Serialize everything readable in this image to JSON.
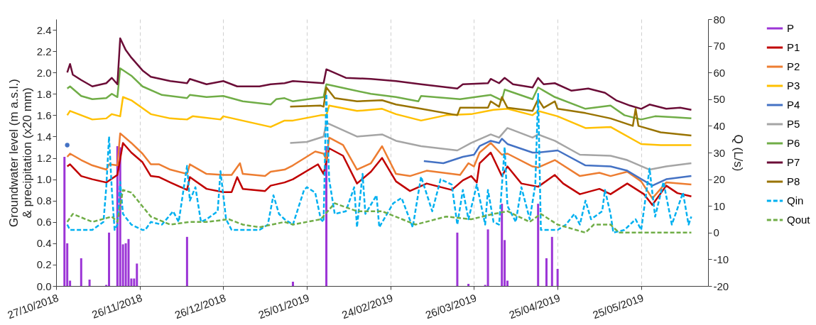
{
  "chart_data": {
    "type": "line",
    "ylabel": "Groundwater level (m a.s.l.)\n& precipitation (x20 mm)",
    "y2label": "Q (L/s)",
    "xlim": [
      "2018-10-27",
      "2019-06-18"
    ],
    "xticks": [
      {
        "value": "2018-10-27",
        "label": "27/10/2018"
      },
      {
        "value": "2018-11-26",
        "label": "26/11/2018"
      },
      {
        "value": "2018-12-26",
        "label": "26/12/2018"
      },
      {
        "value": "2019-01-25",
        "label": "25/01/2019"
      },
      {
        "value": "2019-02-24",
        "label": "24/02/2019"
      },
      {
        "value": "2019-03-26",
        "label": "26/03/2019"
      },
      {
        "value": "2019-04-25",
        "label": "25/04/2019"
      },
      {
        "value": "2019-05-25",
        "label": "25/05/2019"
      }
    ],
    "ylim": [
      0,
      2.5
    ],
    "yticks": [
      {
        "value": 0,
        "label": "0.0"
      },
      {
        "value": 0.2,
        "label": "0.2"
      },
      {
        "value": 0.4,
        "label": "0.4"
      },
      {
        "value": 0.6,
        "label": "0.6"
      },
      {
        "value": 0.8,
        "label": "0.8"
      },
      {
        "value": 1,
        "label": "1.0"
      },
      {
        "value": 1.2,
        "label": "1.2"
      },
      {
        "value": 1.4,
        "label": "1.4"
      },
      {
        "value": 1.6,
        "label": "1.6"
      },
      {
        "value": 1.8,
        "label": "1.8"
      },
      {
        "value": 2,
        "label": "2.0"
      },
      {
        "value": 2.2,
        "label": "2.2"
      },
      {
        "value": 2.4,
        "label": "2.4"
      }
    ],
    "y2lim": [
      -20,
      80
    ],
    "y2ticks": [
      -20,
      -10,
      0,
      10,
      20,
      30,
      40,
      50,
      60,
      70,
      80
    ],
    "grid": "x",
    "legend": "right",
    "series": [
      {
        "name": "P",
        "type": "bar",
        "color": "#9c35d6",
        "x": [
          "2018-10-30",
          "2018-10-31",
          "2018-11-01",
          "2018-11-05",
          "2018-11-08",
          "2018-11-14",
          "2018-11-15",
          "2018-11-18",
          "2018-11-19",
          "2018-11-20",
          "2018-11-21",
          "2018-11-22",
          "2018-11-23",
          "2018-11-24",
          "2018-11-25",
          "2018-12-13",
          "2019-01-20",
          "2019-02-01",
          "2019-03-20",
          "2019-03-24",
          "2019-03-30",
          "2019-03-31",
          "2019-04-05",
          "2019-04-06",
          "2019-04-07",
          "2019-04-18",
          "2019-04-21",
          "2019-04-23",
          "2019-04-25"
        ],
        "values": [
          1.21,
          0.4,
          0.05,
          0.26,
          0.06,
          0.01,
          0.5,
          1.31,
          1.3,
          0.39,
          0.4,
          0.44,
          0.07,
          0.07,
          0.21,
          0.46,
          0.04,
          1.31,
          0.5,
          0.02,
          0.01,
          0.53,
          0.77,
          0.43,
          0.05,
          0.77,
          0.26,
          0.46,
          0.16
        ]
      },
      {
        "name": "P1",
        "color": "#c00000",
        "x": [
          "2018-10-31",
          "2018-11-01",
          "2018-11-05",
          "2018-11-09",
          "2018-11-14",
          "2018-11-18",
          "2018-11-20",
          "2018-11-23",
          "2018-11-27",
          "2018-11-30",
          "2018-12-03",
          "2018-12-07",
          "2018-12-13",
          "2018-12-14",
          "2018-12-20",
          "2018-12-26",
          "2018-12-29",
          "2018-12-31",
          "2019-01-02",
          "2019-01-10",
          "2019-01-12",
          "2019-01-17",
          "2019-01-20",
          "2019-01-29",
          "2019-01-31",
          "2019-02-02",
          "2019-02-07",
          "2019-02-12",
          "2019-02-17",
          "2019-02-21",
          "2019-02-26",
          "2019-03-03",
          "2019-03-09",
          "2019-03-18",
          "2019-03-22",
          "2019-03-25",
          "2019-03-27",
          "2019-03-28",
          "2019-04-01",
          "2019-04-05",
          "2019-04-07",
          "2019-04-12",
          "2019-04-18",
          "2019-04-24",
          "2019-04-27",
          "2019-05-03",
          "2019-05-10",
          "2019-05-14",
          "2019-05-20",
          "2019-05-26",
          "2019-05-29",
          "2019-06-03",
          "2019-06-07",
          "2019-06-12"
        ],
        "values": [
          1.12,
          1.14,
          1.03,
          1.0,
          0.97,
          1.04,
          1.34,
          1.25,
          1.16,
          1.03,
          1.02,
          0.97,
          0.9,
          1.02,
          0.91,
          0.88,
          0.88,
          1.02,
          0.91,
          0.89,
          0.94,
          0.97,
          1.0,
          1.14,
          1.05,
          1.29,
          1.22,
          0.96,
          1.07,
          1.2,
          0.98,
          0.89,
          0.96,
          0.9,
          0.99,
          1.03,
          0.97,
          1.15,
          1.25,
          1.03,
          1.12,
          0.96,
          0.93,
          1.04,
          0.96,
          0.86,
          0.91,
          0.86,
          0.96,
          0.86,
          0.76,
          0.94,
          0.87,
          0.84
        ]
      },
      {
        "name": "P2",
        "color": "#ed7d31",
        "x": [
          "2018-10-31",
          "2018-11-01",
          "2018-11-05",
          "2018-11-09",
          "2018-11-14",
          "2018-11-15",
          "2018-11-18",
          "2018-11-19",
          "2018-11-23",
          "2018-11-27",
          "2018-11-30",
          "2018-12-03",
          "2018-12-07",
          "2018-12-13",
          "2018-12-14",
          "2018-12-20",
          "2018-12-26",
          "2018-12-29",
          "2019-01-01",
          "2019-01-02",
          "2019-01-10",
          "2019-01-12",
          "2019-01-17",
          "2019-01-20",
          "2019-01-28",
          "2019-01-31",
          "2019-02-01",
          "2019-02-02",
          "2019-02-07",
          "2019-02-12",
          "2019-02-17",
          "2019-02-21",
          "2019-02-26",
          "2019-03-03",
          "2019-03-09",
          "2019-03-21",
          "2019-03-24",
          "2019-03-26",
          "2019-03-28",
          "2019-04-01",
          "2019-04-05",
          "2019-04-07",
          "2019-04-16",
          "2019-04-18",
          "2019-04-24",
          "2019-05-03",
          "2019-05-10",
          "2019-05-14",
          "2019-05-20",
          "2019-05-25",
          "2019-05-29",
          "2019-06-03",
          "2019-06-12"
        ],
        "values": [
          1.21,
          1.24,
          1.18,
          1.13,
          1.09,
          1.14,
          1.13,
          1.43,
          1.34,
          1.24,
          1.14,
          1.14,
          1.09,
          1.05,
          1.14,
          1.05,
          1.04,
          1.04,
          1.15,
          1.05,
          1.03,
          1.07,
          1.09,
          1.13,
          1.26,
          1.24,
          1.18,
          1.39,
          1.32,
          1.09,
          1.15,
          1.31,
          1.05,
          1.03,
          1.08,
          1.04,
          1.15,
          1.12,
          1.25,
          1.34,
          1.23,
          1.24,
          1.12,
          1.11,
          1.18,
          1.03,
          1.06,
          1.03,
          1.07,
          0.98,
          0.82,
          0.97,
          0.95
        ]
      },
      {
        "name": "P3",
        "color": "#ffc000",
        "x": [
          "2018-10-31",
          "2018-11-01",
          "2018-11-05",
          "2018-11-09",
          "2018-11-14",
          "2018-11-16",
          "2018-11-19",
          "2018-11-20",
          "2018-11-23",
          "2018-11-30",
          "2018-12-07",
          "2018-12-13",
          "2018-12-15",
          "2018-12-25",
          "2018-12-26",
          "2019-01-12",
          "2019-01-17",
          "2019-01-20",
          "2019-01-30",
          "2019-02-01",
          "2019-02-02",
          "2019-02-12",
          "2019-02-21",
          "2019-02-26",
          "2019-03-07",
          "2019-03-16",
          "2019-03-25",
          "2019-04-02",
          "2019-04-07",
          "2019-04-16",
          "2019-04-18",
          "2019-04-25",
          "2019-05-05",
          "2019-05-14",
          "2019-05-25",
          "2019-06-01",
          "2019-06-12"
        ],
        "values": [
          1.6,
          1.64,
          1.6,
          1.56,
          1.57,
          1.61,
          1.59,
          1.77,
          1.74,
          1.61,
          1.57,
          1.56,
          1.59,
          1.56,
          1.59,
          1.49,
          1.55,
          1.55,
          1.6,
          1.6,
          1.69,
          1.64,
          1.66,
          1.61,
          1.55,
          1.6,
          1.61,
          1.65,
          1.66,
          1.6,
          1.64,
          1.59,
          1.48,
          1.49,
          1.33,
          1.32,
          1.32
        ]
      },
      {
        "name": "P4",
        "color": "#4472c4",
        "x": [
          "2018-10-31",
          "2019-01-01",
          "2019-03-08",
          "2019-03-15",
          "2019-03-22",
          "2019-03-26",
          "2019-03-28",
          "2019-04-01",
          "2019-04-04",
          "2019-04-05",
          "2019-04-07",
          "2019-04-16",
          "2019-04-18",
          "2019-04-25",
          "2019-05-05",
          "2019-05-14",
          "2019-05-20",
          "2019-05-29",
          "2019-06-03",
          "2019-06-12"
        ],
        "values": [
          1.32,
          null,
          1.17,
          1.15,
          1.21,
          1.23,
          1.31,
          1.36,
          1.34,
          1.38,
          1.33,
          1.25,
          1.25,
          1.27,
          1.13,
          1.12,
          1.08,
          0.94,
          1.0,
          1.03
        ]
      },
      {
        "name": "P5",
        "color": "#a5a5a5",
        "x": [
          "2019-01-19",
          "2019-01-25",
          "2019-01-31",
          "2019-02-01",
          "2019-02-12",
          "2019-02-21",
          "2019-02-26",
          "2019-03-07",
          "2019-03-20",
          "2019-03-25",
          "2019-04-01",
          "2019-04-04",
          "2019-04-07",
          "2019-04-16",
          "2019-04-18",
          "2019-04-24",
          "2019-05-03",
          "2019-05-14",
          "2019-05-20",
          "2019-05-28",
          "2019-06-03",
          "2019-06-12"
        ],
        "values": [
          1.34,
          1.35,
          1.4,
          1.53,
          1.4,
          1.42,
          1.36,
          1.31,
          1.27,
          1.34,
          1.42,
          1.39,
          1.48,
          1.39,
          1.42,
          1.36,
          1.23,
          1.22,
          1.18,
          1.09,
          1.12,
          1.15
        ]
      },
      {
        "name": "P6",
        "color": "#70ad47",
        "x": [
          "2018-10-31",
          "2018-11-01",
          "2018-11-05",
          "2018-11-09",
          "2018-11-14",
          "2018-11-16",
          "2018-11-18",
          "2018-11-19",
          "2018-11-23",
          "2018-11-27",
          "2018-12-04",
          "2018-12-13",
          "2018-12-14",
          "2018-12-20",
          "2018-12-26",
          "2019-01-02",
          "2019-01-12",
          "2019-01-14",
          "2019-01-17",
          "2019-01-20",
          "2019-01-31",
          "2019-02-01",
          "2019-02-08",
          "2019-02-17",
          "2019-02-26",
          "2019-03-06",
          "2019-03-07",
          "2019-03-21",
          "2019-04-01",
          "2019-04-05",
          "2019-04-06",
          "2019-04-16",
          "2019-04-18",
          "2019-04-24",
          "2019-05-05",
          "2019-05-14",
          "2019-05-19",
          "2019-05-25",
          "2019-05-30",
          "2019-06-06",
          "2019-06-12"
        ],
        "values": [
          1.85,
          1.87,
          1.78,
          1.75,
          1.76,
          1.8,
          1.77,
          2.04,
          1.97,
          1.87,
          1.79,
          1.76,
          1.79,
          1.77,
          1.78,
          1.73,
          1.7,
          1.75,
          1.76,
          1.73,
          1.77,
          1.89,
          1.85,
          1.8,
          1.77,
          1.73,
          1.78,
          1.75,
          1.79,
          1.74,
          1.84,
          1.75,
          1.86,
          1.77,
          1.66,
          1.69,
          1.6,
          1.56,
          1.59,
          1.58,
          1.57
        ]
      },
      {
        "name": "P7",
        "color": "#6b0d37",
        "x": [
          "2018-10-31",
          "2018-11-01",
          "2018-11-02",
          "2018-11-05",
          "2018-11-09",
          "2018-11-14",
          "2018-11-16",
          "2018-11-18",
          "2018-11-19",
          "2018-11-21",
          "2018-11-23",
          "2018-11-27",
          "2018-11-30",
          "2018-12-07",
          "2018-12-13",
          "2018-12-14",
          "2018-12-20",
          "2018-12-26",
          "2018-12-31",
          "2019-01-08",
          "2019-01-12",
          "2019-01-17",
          "2019-01-20",
          "2019-01-31",
          "2019-02-01",
          "2019-02-08",
          "2019-02-17",
          "2019-02-26",
          "2019-03-07",
          "2019-03-20",
          "2019-03-22",
          "2019-03-31",
          "2019-04-01",
          "2019-04-04",
          "2019-04-06",
          "2019-04-09",
          "2019-04-16",
          "2019-04-18",
          "2019-04-20",
          "2019-04-24",
          "2019-04-30",
          "2019-05-06",
          "2019-05-12",
          "2019-05-16",
          "2019-05-21",
          "2019-05-25",
          "2019-05-28",
          "2019-06-03",
          "2019-06-08",
          "2019-06-12"
        ],
        "values": [
          2.0,
          2.08,
          1.98,
          1.93,
          1.87,
          1.9,
          1.95,
          1.89,
          2.32,
          2.21,
          2.14,
          2.02,
          1.96,
          1.92,
          1.9,
          1.94,
          1.89,
          1.92,
          1.87,
          1.87,
          1.89,
          1.9,
          1.92,
          1.9,
          2.03,
          1.95,
          1.94,
          1.92,
          1.89,
          1.85,
          1.89,
          1.9,
          1.94,
          1.9,
          1.95,
          1.89,
          1.86,
          1.95,
          1.89,
          1.9,
          1.83,
          1.85,
          1.81,
          1.74,
          1.69,
          1.66,
          1.7,
          1.66,
          1.67,
          1.65
        ]
      },
      {
        "name": "P8",
        "color": "#997300",
        "x": [
          "2019-01-19",
          "2019-01-30",
          "2019-01-31",
          "2019-02-01",
          "2019-02-04",
          "2019-02-12",
          "2019-02-21",
          "2019-02-26",
          "2019-03-07",
          "2019-03-20",
          "2019-03-21",
          "2019-03-31",
          "2019-04-01",
          "2019-04-04",
          "2019-04-05",
          "2019-04-07",
          "2019-04-16",
          "2019-04-18",
          "2019-04-20",
          "2019-04-24",
          "2019-04-25",
          "2019-05-05",
          "2019-05-14",
          "2019-05-22",
          "2019-05-23",
          "2019-05-24",
          "2019-06-01",
          "2019-06-12"
        ],
        "values": [
          1.68,
          1.69,
          1.68,
          1.86,
          1.76,
          1.73,
          1.74,
          1.7,
          1.66,
          1.6,
          1.67,
          1.67,
          1.73,
          1.68,
          1.77,
          1.67,
          1.64,
          1.75,
          1.67,
          1.73,
          1.66,
          1.62,
          1.57,
          1.5,
          1.66,
          1.5,
          1.44,
          1.41
        ]
      },
      {
        "name": "Qin",
        "color": "#00b0f0",
        "axis": "y2",
        "line_style": "dashed",
        "x": [
          "2018-10-31",
          "2018-11-01",
          "2018-11-09",
          "2018-11-13",
          "2018-11-14",
          "2018-11-15",
          "2018-11-16",
          "2018-11-17",
          "2018-11-18",
          "2018-11-19",
          "2018-11-20",
          "2018-11-23",
          "2018-11-27",
          "2018-11-28",
          "2018-11-30",
          "2018-12-04",
          "2018-12-08",
          "2018-12-10",
          "2018-12-13",
          "2018-12-14",
          "2018-12-16",
          "2018-12-18",
          "2018-12-20",
          "2018-12-24",
          "2018-12-25",
          "2018-12-27",
          "2018-12-29",
          "2019-01-08",
          "2019-01-11",
          "2019-01-13",
          "2019-01-15",
          "2019-01-17",
          "2019-01-20",
          "2019-01-24",
          "2019-01-25",
          "2019-01-28",
          "2019-01-30",
          "2019-01-31",
          "2019-02-01",
          "2019-02-02",
          "2019-02-04",
          "2019-02-08",
          "2019-02-11",
          "2019-02-12",
          "2019-02-14",
          "2019-02-15",
          "2019-02-19",
          "2019-02-20",
          "2019-02-25",
          "2019-02-28",
          "2019-03-04",
          "2019-03-07",
          "2019-03-11",
          "2019-03-14",
          "2019-03-18",
          "2019-03-20",
          "2019-03-22",
          "2019-03-24",
          "2019-03-27",
          "2019-03-30",
          "2019-03-31",
          "2019-04-02",
          "2019-04-04",
          "2019-04-06",
          "2019-04-07",
          "2019-04-10",
          "2019-04-12",
          "2019-04-15",
          "2019-04-17",
          "2019-04-18",
          "2019-04-19",
          "2019-04-25",
          "2019-04-28",
          "2019-05-01",
          "2019-05-03",
          "2019-05-05",
          "2019-05-07",
          "2019-05-11",
          "2019-05-12",
          "2019-05-14",
          "2019-05-15",
          "2019-05-19",
          "2019-05-23",
          "2019-05-25",
          "2019-05-28",
          "2019-05-30",
          "2019-06-02",
          "2019-06-05",
          "2019-06-09",
          "2019-06-11",
          "2019-06-12"
        ],
        "values": [
          3,
          1,
          1,
          4,
          17,
          36,
          16,
          1,
          3,
          19,
          7,
          3,
          1,
          1,
          4,
          3,
          8,
          4,
          25,
          12,
          17,
          4,
          5,
          8,
          23,
          5,
          1,
          1,
          3,
          14,
          7,
          5,
          3,
          16,
          17,
          15,
          5,
          4,
          52,
          20,
          7,
          8,
          17,
          2,
          22,
          7,
          14,
          2,
          11,
          13,
          2,
          21,
          8,
          20,
          18,
          3,
          16,
          5,
          18,
          3,
          16,
          4,
          3,
          32,
          10,
          4,
          17,
          5,
          18,
          52,
          1,
          1,
          3,
          7,
          3,
          12,
          5,
          8,
          16,
          7,
          0,
          1,
          5,
          1,
          24,
          6,
          19,
          3,
          15,
          3,
          6
        ]
      },
      {
        "name": "Qout",
        "color": "#70ad47",
        "axis": "y2",
        "line_style": "dashed",
        "x": [
          "2018-10-31",
          "2018-11-02",
          "2018-11-09",
          "2018-11-16",
          "2018-11-18",
          "2018-11-20",
          "2018-11-23",
          "2018-11-30",
          "2018-12-07",
          "2018-12-14",
          "2018-12-20",
          "2018-12-28",
          "2019-01-02",
          "2019-01-08",
          "2019-01-17",
          "2019-01-20",
          "2019-01-30",
          "2019-02-04",
          "2019-02-12",
          "2019-02-21",
          "2019-03-05",
          "2019-03-16",
          "2019-03-25",
          "2019-04-02",
          "2019-04-07",
          "2019-04-15",
          "2019-04-19",
          "2019-04-25",
          "2019-05-05",
          "2019-05-08",
          "2019-05-14",
          "2019-05-17",
          "2019-06-12"
        ],
        "values": [
          4,
          7,
          4,
          6,
          4,
          16,
          15,
          6,
          3,
          4,
          4,
          5,
          3,
          2,
          4,
          3,
          5,
          11,
          8,
          8,
          3,
          6,
          5,
          7,
          8,
          4,
          7,
          3,
          0,
          3,
          3,
          0,
          0
        ]
      }
    ]
  }
}
